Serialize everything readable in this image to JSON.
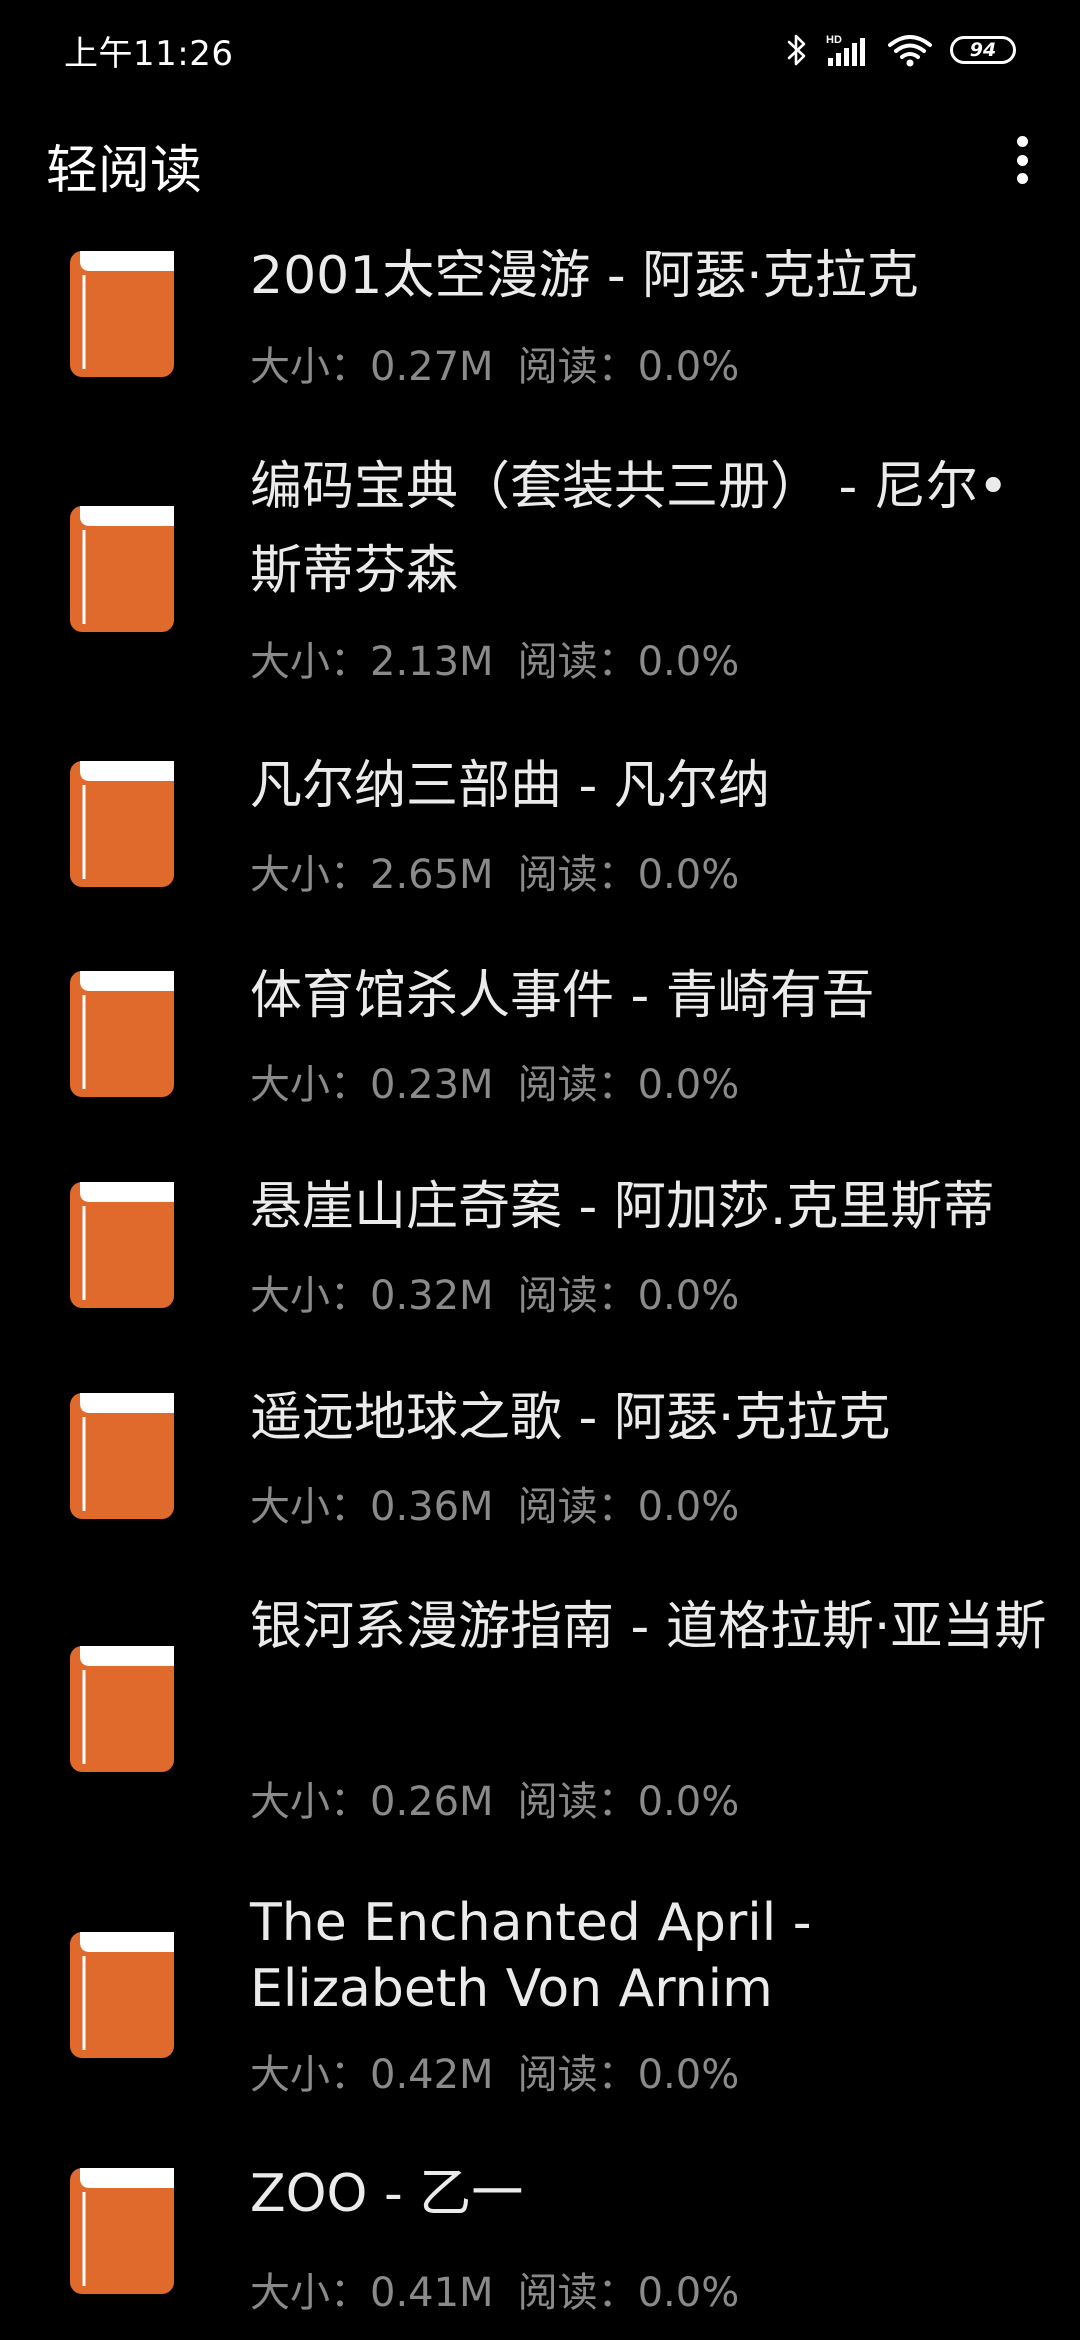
{
  "status_bar": {
    "time": "上午11:26",
    "battery": "94",
    "icons": [
      "bluetooth-icon",
      "hd-signal-icon",
      "wifi-icon",
      "battery-icon"
    ]
  },
  "app_bar": {
    "title": "轻阅读",
    "menu_icon": "overflow-menu-icon"
  },
  "colors": {
    "background": "#000000",
    "book_icon": "#e06a2c",
    "title_text": "#ebebeb",
    "meta_text": "#8a8a8a"
  },
  "books": [
    {
      "title": "2001太空漫游 - 阿瑟·克拉克",
      "size": "大小：0.27M",
      "progress": "阅读：0.0%"
    },
    {
      "title": "编码宝典（套装共三册） - 尼尔•斯蒂芬森",
      "size": "大小：2.13M",
      "progress": "阅读：0.0%"
    },
    {
      "title": "凡尔纳三部曲 - 凡尔纳",
      "size": "大小：2.65M",
      "progress": "阅读：0.0%"
    },
    {
      "title": "体育馆杀人事件 - 青崎有吾",
      "size": "大小：0.23M",
      "progress": "阅读：0.0%"
    },
    {
      "title": "悬崖山庄奇案 - 阿加莎.克里斯蒂",
      "size": "大小：0.32M",
      "progress": "阅读：0.0%"
    },
    {
      "title": "遥远地球之歌 - 阿瑟·克拉克",
      "size": "大小：0.36M",
      "progress": "阅读：0.0%"
    },
    {
      "title": "银河系漫游指南 - 道格拉斯·亚当斯",
      "size": "大小：0.26M",
      "progress": "阅读：0.0%"
    },
    {
      "title": "The Enchanted April - Elizabeth Von Arnim",
      "size": "大小：0.42M",
      "progress": "阅读：0.0%"
    },
    {
      "title": "ZOO - 乙一",
      "size": "大小：0.41M",
      "progress": "阅读：0.0%"
    }
  ]
}
